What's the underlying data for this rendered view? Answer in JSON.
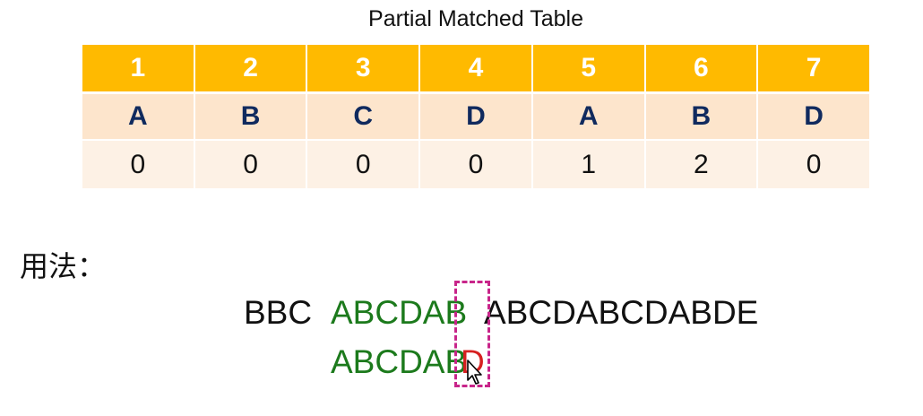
{
  "title": "Partial Matched Table",
  "table": {
    "positions": [
      "1",
      "2",
      "3",
      "4",
      "5",
      "6",
      "7"
    ],
    "chars": [
      "A",
      "B",
      "C",
      "D",
      "A",
      "B",
      "D"
    ],
    "values": [
      "0",
      "0",
      "0",
      "0",
      "1",
      "2",
      "0"
    ],
    "colors": {
      "header_bg": "#ffba00",
      "chars_bg": "#fde5cc",
      "values_bg": "#fdf1e5",
      "chars_text": "#102a5e"
    }
  },
  "usage": {
    "label": "用法：",
    "text_prefix": "BBC",
    "text_matched": "ABCDAB",
    "text_rest": "ABCDABCDABDE",
    "pattern_matched": "ABCDAB",
    "pattern_mismatch": "D",
    "colors": {
      "matched": "#1c7a1c",
      "mismatch": "#d62020",
      "highlight_box": "#c8258a"
    }
  }
}
